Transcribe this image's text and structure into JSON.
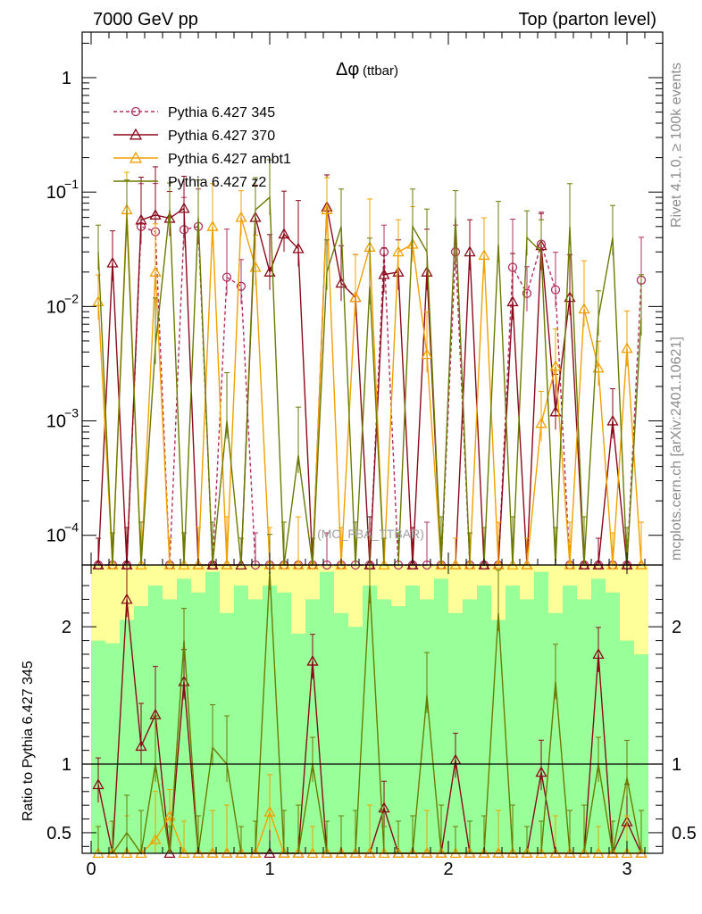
{
  "header": {
    "energy_label": "7000 GeV pp",
    "process_label": "Top (parton level)"
  },
  "side": {
    "rivet_label": "Rivet 4.1.0, ≥ 100k events",
    "source_label": "mcplots.cern.ch [arXiv:2401.10621]"
  },
  "chart_data": {
    "type": "line",
    "title": "Δφ (ttbar)",
    "title_main": "Δφ",
    "title_sub": "(ttbar)",
    "watermark": "(MC_FBA_TTBAR)",
    "xlabel": "",
    "ylabel_ratio": "Ratio to Pythia 6.427 345",
    "xlim": [
      -0.05,
      3.2
    ],
    "ylim": [
      5.5e-05,
      2.5
    ],
    "yscale": "log",
    "ratio_ylim": [
      0.35,
      2.45
    ],
    "x_ticks": [
      "0",
      "1",
      "2",
      "3"
    ],
    "y_ticks_main": [
      {
        "value": 0.0001,
        "base": "10",
        "exp": "−4"
      },
      {
        "value": 0.001,
        "base": "10",
        "exp": "−3"
      },
      {
        "value": 0.01,
        "base": "10",
        "exp": "−2"
      },
      {
        "value": 0.1,
        "base": "10",
        "exp": "−1"
      },
      {
        "value": 1,
        "base": "1",
        "exp": ""
      }
    ],
    "y_ticks_ratio": [
      {
        "value": 0.5,
        "label": "0.5"
      },
      {
        "value": 1,
        "label": "1"
      },
      {
        "value": 2,
        "label": "2"
      }
    ],
    "x": [
      0.04,
      0.12,
      0.2,
      0.28,
      0.36,
      0.44,
      0.52,
      0.6,
      0.68,
      0.76,
      0.84,
      0.92,
      1.0,
      1.08,
      1.16,
      1.24,
      1.32,
      1.4,
      1.48,
      1.56,
      1.64,
      1.72,
      1.8,
      1.88,
      1.96,
      2.04,
      2.12,
      2.2,
      2.28,
      2.36,
      2.44,
      2.52,
      2.6,
      2.68,
      2.76,
      2.84,
      2.92,
      3.0,
      3.08
    ],
    "series": [
      {
        "name": "Pythia 6.427 345",
        "color": "#b03060",
        "marker": "circle",
        "dashed": true,
        "values": [
          0,
          0,
          0,
          0.05,
          0.045,
          0,
          0.047,
          0.05,
          0,
          0.018,
          0.015,
          0,
          0,
          0,
          0,
          0,
          0,
          0,
          0,
          0,
          0.03,
          0,
          0,
          0,
          0,
          0.03,
          0,
          0,
          0,
          0.022,
          0.013,
          0.035,
          0.014,
          0,
          0,
          0,
          0,
          0,
          0.017
        ]
      },
      {
        "name": "Pythia 6.427 370",
        "color": "#8b0a1a",
        "marker": "triangle",
        "dashed": false,
        "values": [
          0,
          0.024,
          0,
          0.057,
          0.063,
          0.059,
          0.072,
          0,
          0,
          0,
          0,
          0.06,
          0.02,
          0.043,
          0.032,
          0,
          0.074,
          0.016,
          0.012,
          0,
          0.019,
          0.02,
          0,
          0.02,
          0,
          0,
          0.03,
          0,
          0,
          0.011,
          0,
          0.034,
          0.0012,
          0.012,
          0,
          0,
          0.001,
          0,
          0
        ]
      },
      {
        "name": "Pythia 6.427 ambt1",
        "color": "#f0a000",
        "marker": "triangle",
        "dashed": false,
        "values": [
          0.011,
          0,
          0.07,
          0,
          0.02,
          0,
          0,
          0,
          0.05,
          0,
          0.06,
          0.022,
          0,
          0,
          0,
          0,
          0.07,
          0,
          0.012,
          0.033,
          0,
          0.03,
          0.035,
          0.0038,
          0,
          0,
          0,
          0.028,
          0,
          0,
          0,
          0.00095,
          0.003,
          0,
          0.0095,
          0.0029,
          0,
          0.0043,
          0
        ]
      },
      {
        "name": "Pythia 6.427 z2",
        "color": "#6b7a00",
        "marker": "none",
        "dashed": false,
        "values": [
          0.03,
          0,
          0.06,
          0,
          0.0045,
          0.07,
          0,
          0.06,
          0,
          0.001,
          0,
          0.07,
          0.09,
          0,
          0.0005,
          0,
          0.02,
          0.05,
          0,
          0.015,
          0,
          0,
          0.05,
          0.03,
          0,
          0.06,
          0,
          0,
          0.035,
          0,
          0.04,
          0.03,
          0,
          0.05,
          0,
          0.008,
          0.04,
          2e-05,
          0.008
        ]
      }
    ],
    "legend": [
      "Pythia 6.427 345",
      "Pythia 6.427 370",
      "Pythia 6.427 ambt1",
      "Pythia 6.427 z2"
    ],
    "legend_position": "top-left",
    "band_yellow": [
      2.45,
      2.45,
      2.45,
      2.45,
      2.45,
      2.45,
      2.45,
      2.45,
      2.45,
      2.45,
      2.45,
      2.45,
      2.45,
      2.45,
      2.45,
      2.45,
      2.45,
      2.45,
      2.45,
      2.45,
      2.45,
      2.45,
      2.45,
      2.45,
      2.45,
      2.45,
      2.45,
      2.45,
      2.45,
      2.45,
      2.45,
      2.45,
      2.45,
      2.45,
      2.45,
      2.45,
      2.45,
      2.45,
      2.45
    ],
    "band_green": [
      1.9,
      1.88,
      2.05,
      2.15,
      2.3,
      2.2,
      2.35,
      2.25,
      2.4,
      2.1,
      2.3,
      2.2,
      2.3,
      2.25,
      1.95,
      2.2,
      2.4,
      2.1,
      2.0,
      2.3,
      2.2,
      2.15,
      2.3,
      2.2,
      2.35,
      2.1,
      2.2,
      2.3,
      2.05,
      2.3,
      2.2,
      2.4,
      2.1,
      2.3,
      2.2,
      2.35,
      2.25,
      1.9,
      1.8
    ],
    "ratio_series": [
      {
        "name": "Pythia 6.427 370",
        "color": "#8b0a1a",
        "marker": "triangle",
        "values": [
          0.85,
          0.3,
          2.2,
          1.13,
          1.36,
          0.3,
          1.6,
          0.3,
          0.3,
          0.3,
          0.3,
          0.3,
          0.3,
          0.3,
          0.3,
          1.75,
          0.3,
          0.3,
          0.3,
          0.3,
          0.68,
          0.3,
          0.3,
          0.3,
          0.3,
          1.03,
          0.3,
          0.3,
          0.3,
          0.3,
          0.3,
          0.94,
          0.3,
          0.3,
          0.3,
          1.8,
          0.3,
          0.58,
          0.3
        ]
      },
      {
        "name": "Pythia 6.427 ambt1",
        "color": "#f0a000",
        "marker": "triangle",
        "values": [
          0.3,
          0.3,
          0.3,
          0.3,
          0.45,
          0.62,
          0.3,
          0.3,
          0.3,
          0.3,
          0.3,
          0.3,
          0.65,
          0.3,
          0.3,
          0.3,
          0.3,
          0.3,
          0.3,
          0.3,
          0.3,
          0.3,
          0.3,
          0.3,
          0.3,
          0.3,
          0.3,
          0.3,
          0.3,
          0.3,
          0.3,
          0.3,
          0.3,
          0.3,
          0.3,
          0.3,
          0.3,
          0.3,
          0.3
        ]
      },
      {
        "name": "Pythia 6.427 z2",
        "color": "#6b7a00",
        "marker": "none",
        "values": [
          0.3,
          0.3,
          0.5,
          0.3,
          1.0,
          0.3,
          1.9,
          0.3,
          1.12,
          1.0,
          0.3,
          0.3,
          2.4,
          0.3,
          0.3,
          1.0,
          0.3,
          0.3,
          0.3,
          2.3,
          0.3,
          0.3,
          0.3,
          1.5,
          0.3,
          0.3,
          0.3,
          0.3,
          2.1,
          0.3,
          0.3,
          0.3,
          1.6,
          0.3,
          0.3,
          1.0,
          0.3,
          0.9,
          0.3
        ]
      }
    ]
  }
}
